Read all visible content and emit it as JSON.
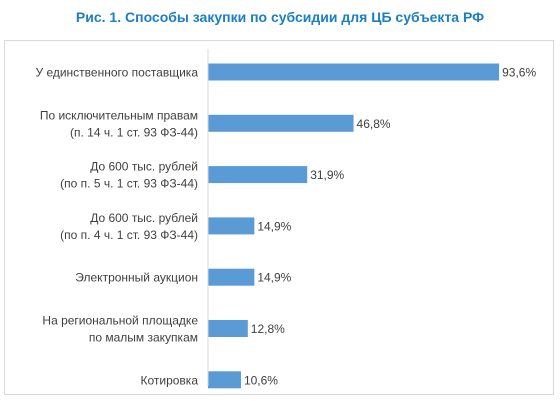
{
  "chart_data": {
    "type": "bar",
    "orientation": "horizontal",
    "title": "Рис. 1. Способы закупки по субсидии для ЦБ субъекта РФ",
    "categories": [
      [
        "У единственного поставщика"
      ],
      [
        "По исключительным правам",
        "(п. 14 ч. 1 ст. 93 ФЗ-44)"
      ],
      [
        "До 600 тыс. рублей",
        "(по п. 5 ч. 1 ст. 93 ФЗ-44)"
      ],
      [
        "До 600 тыс. рублей",
        "(по п. 4 ч. 1 ст. 93 ФЗ-44)"
      ],
      [
        "Электронный аукцион"
      ],
      [
        "На региональной площадке",
        "по малым закупкам"
      ],
      [
        "Котировка"
      ]
    ],
    "values": [
      93.6,
      46.8,
      31.9,
      14.9,
      14.9,
      12.8,
      10.6
    ],
    "value_labels": [
      "93,6%",
      "46,8%",
      "31,9%",
      "14,9%",
      "14,9%",
      "12,8%",
      "10,6%"
    ],
    "xlim": [
      0,
      100
    ],
    "grid": false,
    "legend": "none",
    "bar_color": "#5b9bd5",
    "title_color": "#1b7fc1"
  }
}
